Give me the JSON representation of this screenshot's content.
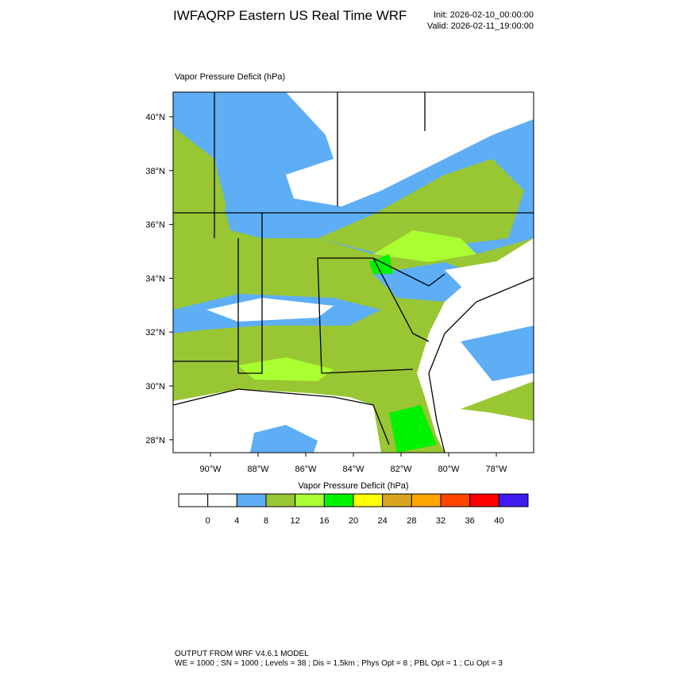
{
  "header": {
    "title": "IWFAQRP Eastern US Real Time WRF",
    "init": "Init: 2026-02-10_00:00:00",
    "valid": "Valid: 2026-02-11_19:00:00"
  },
  "map": {
    "title": "Vapor Pressure Deficit   (hPa)",
    "lat_labels": [
      "40°N",
      "38°N",
      "36°N",
      "34°N",
      "32°N",
      "30°N",
      "28°N"
    ],
    "lon_labels": [
      "90°W",
      "88°W",
      "86°W",
      "84°W",
      "82°W",
      "80°W",
      "78°W"
    ]
  },
  "colorbar": {
    "title": "Vapor Pressure Deficit  (hPa)",
    "levels": [
      0,
      4,
      8,
      12,
      16,
      20,
      24,
      28,
      32,
      36,
      40
    ],
    "colors": [
      "#ffffff",
      "#ffffff",
      "#5eaef5",
      "#99c633",
      "#aaff33",
      "#00f200",
      "#ffff00",
      "#d9a520",
      "#ffa500",
      "#ff4500",
      "#ff0000",
      "#3f1bf0"
    ]
  },
  "footer": {
    "line1": "OUTPUT FROM WRF V4.6.1 MODEL",
    "line2": "WE = 1000 ; SN = 1000 ; Levels = 38 ; Dis = 1.5km ; Phys Opt = 8 ; PBL Opt = 1 ; Cu Opt = 3"
  }
}
